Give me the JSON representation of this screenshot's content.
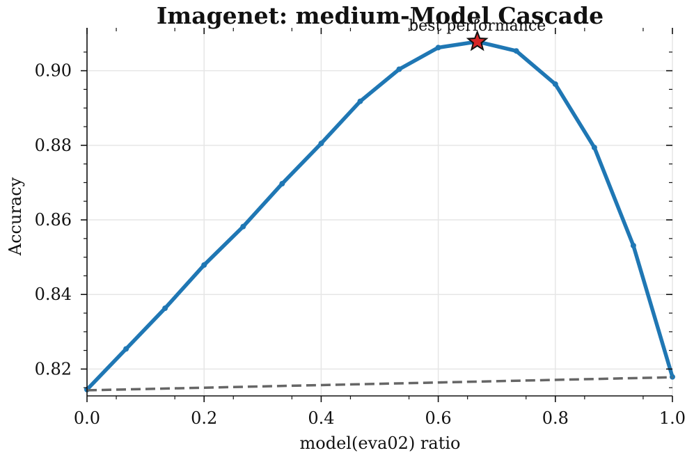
{
  "chart_data": {
    "type": "line",
    "title": "Imagenet: medium-Model Cascade",
    "xlabel": "model(eva02) ratio",
    "ylabel": "Accuracy",
    "xlim": [
      0.0,
      1.0
    ],
    "ylim": [
      0.8128,
      0.9115
    ],
    "grid": true,
    "x_ticks": [
      "0.0",
      "0.2",
      "0.4",
      "0.6",
      "0.8",
      "1.0"
    ],
    "y_ticks": [
      "0.82",
      "0.84",
      "0.86",
      "0.88",
      "0.90"
    ],
    "series": [
      {
        "style": "solid",
        "color": "#1f77b4",
        "x": [
          0.0,
          0.0667,
          0.1333,
          0.2,
          0.2667,
          0.3333,
          0.4,
          0.4667,
          0.5333,
          0.6,
          0.6667,
          0.7333,
          0.8,
          0.8667,
          0.9333,
          1.0
        ],
        "y": [
          0.8145,
          0.8254,
          0.8363,
          0.8479,
          0.8582,
          0.8697,
          0.8805,
          0.8918,
          0.9004,
          0.9062,
          0.9078,
          0.9053,
          0.8964,
          0.8794,
          0.8531,
          0.8179
        ]
      },
      {
        "style": "dashed",
        "color": "#666666",
        "x": [
          0.0,
          1.0
        ],
        "y": [
          0.8143,
          0.8178
        ]
      }
    ],
    "annotation": {
      "text": "best performance",
      "x": 0.6667,
      "y": 0.9078,
      "marker": "star",
      "marker_color": "#d62728"
    }
  }
}
